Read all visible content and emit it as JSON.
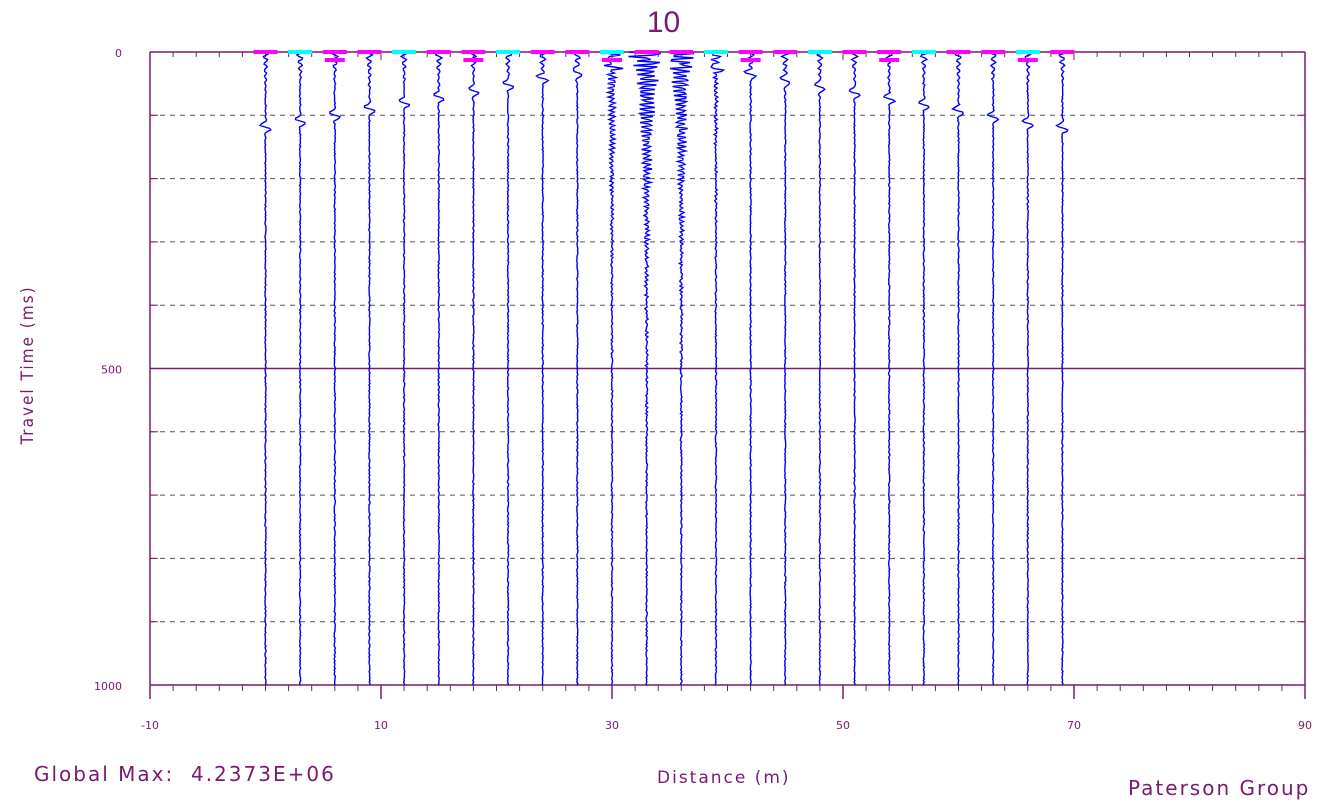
{
  "chart_data": {
    "type": "line",
    "title": "10",
    "xlabel": "Distance (m)",
    "ylabel": "Travel Time (ms)",
    "xlim": [
      -10,
      90
    ],
    "ylim": [
      0,
      1000
    ],
    "y_inverted": true,
    "x_ticks": [
      -10,
      10,
      30,
      50,
      70,
      90
    ],
    "y_ticks": [
      0,
      500,
      1000
    ],
    "y_grid_step": 100,
    "grid": "dashed horizontal",
    "trace_offsets": [
      0,
      3,
      6,
      9,
      12,
      15,
      18,
      21,
      24,
      27,
      30,
      33,
      36,
      39,
      42,
      45,
      48,
      51,
      54,
      57,
      60,
      63,
      66,
      69
    ],
    "trace_color": "#0000ff",
    "pick_colors": [
      "#ff00ff",
      "#00ffff"
    ],
    "axis_color": "#7a1a6e",
    "grid_color": "#555555"
  },
  "footer": {
    "global_max_label": "Global Max:",
    "global_max_value": "4.2373E+06",
    "credit": "Paterson Group"
  }
}
